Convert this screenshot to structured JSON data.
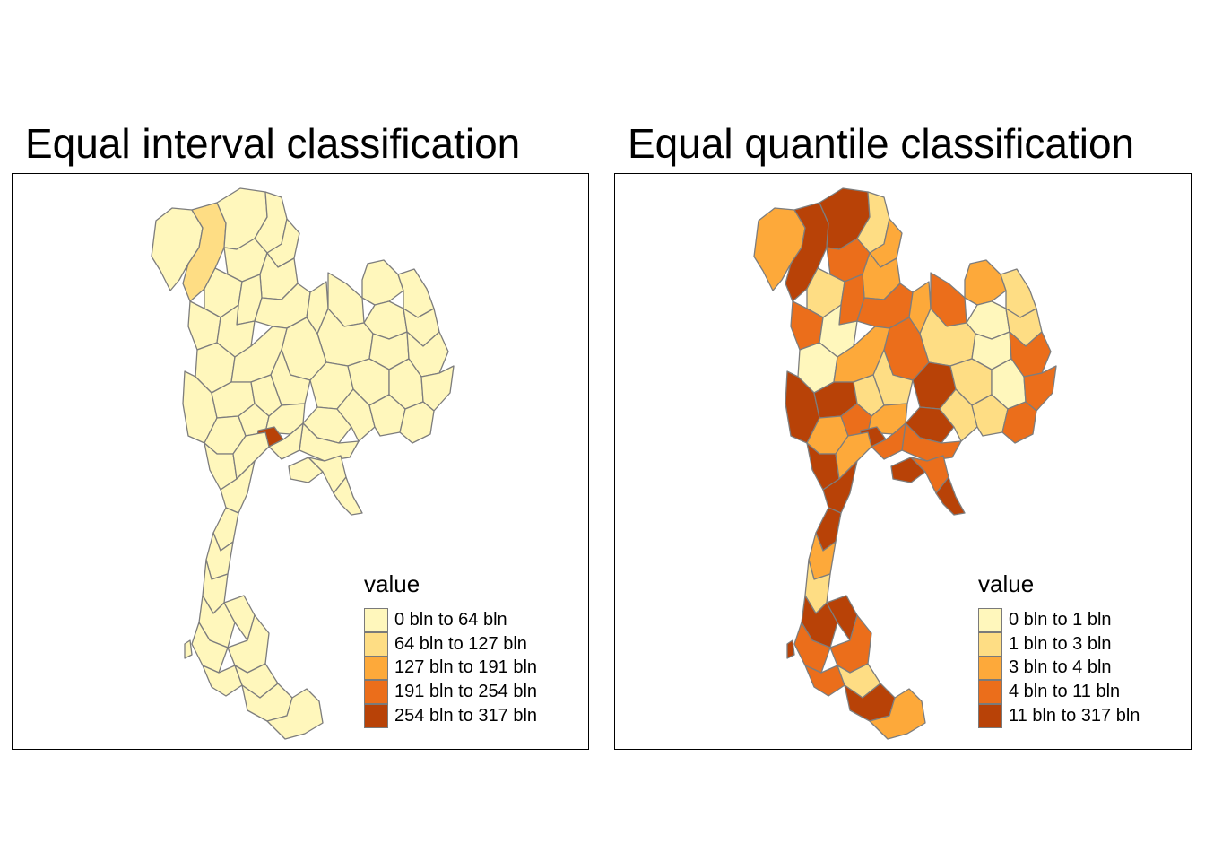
{
  "panels": [
    {
      "title": "Equal interval classification",
      "legend_title": "value",
      "classes": [
        {
          "label": "0 bln to 64 bln",
          "color": "#FFF7BC"
        },
        {
          "label": "64 bln to 127 bln",
          "color": "#FEDD84"
        },
        {
          "label": "127 bln to 191 bln",
          "color": "#FDA93A"
        },
        {
          "label": "191 bln to 254 bln",
          "color": "#EB6E1B"
        },
        {
          "label": "254 bln to 317 bln",
          "color": "#B84207"
        }
      ]
    },
    {
      "title": "Equal quantile classification",
      "legend_title": "value",
      "classes": [
        {
          "label": "0 bln to 1 bln",
          "color": "#FFF7BC"
        },
        {
          "label": "1 bln to 3 bln",
          "color": "#FEDD84"
        },
        {
          "label": "3 bln to 4 bln",
          "color": "#FDA93A"
        },
        {
          "label": "4 bln to 11 bln",
          "color": "#EB6E1B"
        },
        {
          "label": "11 bln to 317 bln",
          "color": "#B84207"
        }
      ]
    }
  ]
}
